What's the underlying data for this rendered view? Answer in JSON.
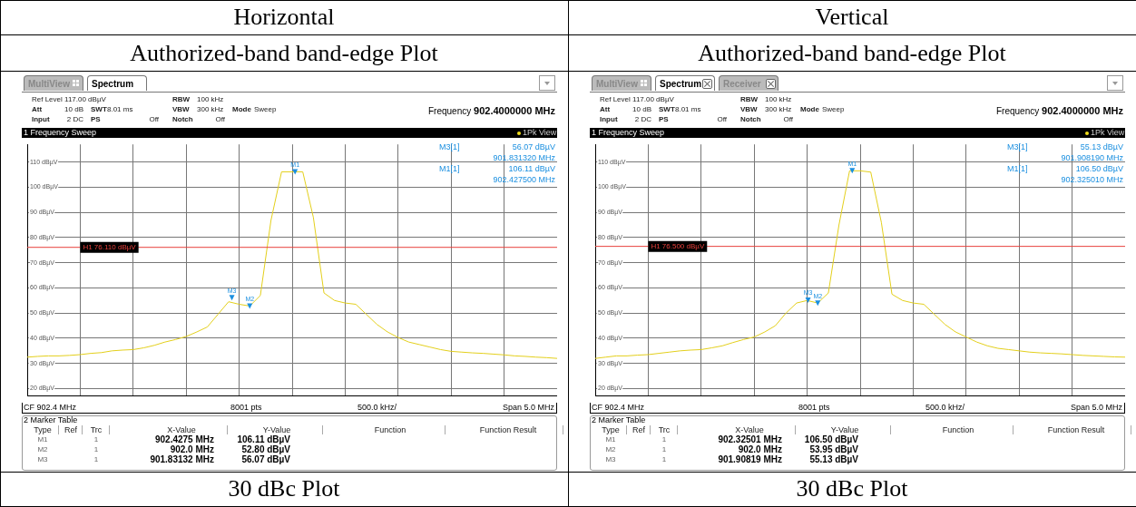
{
  "chart_data": [
    {
      "type": "line",
      "title": "Horizontal",
      "subtitle": "Authorized-band band-edge Plot",
      "categories": [
        null,
        null,
        null,
        null,
        null,
        null,
        null,
        null,
        null,
        null,
        null,
        null,
        null,
        null,
        null,
        null,
        null,
        null,
        null,
        null,
        null,
        null,
        null,
        null,
        null,
        null,
        null,
        null,
        null,
        null,
        null,
        null,
        null,
        null,
        null,
        null,
        null,
        null,
        null,
        null,
        null,
        null,
        null,
        null,
        null,
        null,
        null,
        null,
        null,
        null,
        null
      ],
      "ylim": [
        17,
        117
      ],
      "yticks": [
        {
          "value": 20,
          "label": "20 dBµV"
        },
        {
          "value": 30,
          "label": "30 dBµV"
        },
        {
          "value": 40,
          "label": "40 dBµV"
        },
        {
          "value": 50,
          "label": "50 dBµV"
        },
        {
          "value": 60,
          "label": "60 dBµV"
        },
        {
          "value": 70,
          "label": "70 dBµV"
        },
        {
          "value": 80,
          "label": "80 dBµV"
        },
        {
          "value": 90,
          "label": "90 dBµV"
        },
        {
          "value": 100,
          "label": "100 dBµV"
        },
        {
          "value": 110,
          "label": "110 dBµV"
        }
      ],
      "grid": true,
      "tick_labels": "y",
      "marker": "none",
      "line_style": "solid",
      "ref_lines": [
        {
          "axis": "y",
          "value": 76.11,
          "label": "H1 76.110 dBµV",
          "color": "#e8413c"
        }
      ],
      "series": [
        {
          "color": "#e3cf1b",
          "values": [
            32.5,
            32.8,
            33,
            33,
            33.2,
            33.5,
            34,
            34.3,
            35,
            35.3,
            35.5,
            36.2,
            37.2,
            38.5,
            39.5,
            40.7,
            42.5,
            44.5,
            49.5,
            54.5,
            53.5,
            52.8,
            57,
            86.8,
            106.1,
            106.1,
            106.1,
            88,
            58,
            55,
            54,
            53.5,
            49.5,
            45.5,
            42.5,
            40.3,
            38.5,
            37.5,
            36.5,
            35.5,
            34.8,
            34.5,
            34.2,
            34,
            33.7,
            33.4,
            33,
            32.8,
            32.5,
            32.3,
            32
          ]
        }
      ],
      "annotations": [
        "Ref Level 117.00 dBµV",
        "Att",
        "10 dB",
        "Input",
        "2 DC",
        "SWT",
        "8.01 ms",
        "PS",
        "Off",
        "RBW",
        "100 kHz",
        "VBW",
        "300 kHz",
        "Notch",
        "Off",
        "Mode",
        "Sweep",
        "Frequency",
        "902.4000000 MHz",
        "1 Frequency Sweep",
        "1Pk View",
        "M3[1]",
        "56.07 dBµV",
        "901.831320 MHz",
        "M1[1]",
        "106.11 dBµV",
        "902.427500 MHz",
        "CF 902.4 MHz",
        "8001 pts",
        "500.0 kHz/",
        "Span 5.0 MHz",
        "2 Marker Table",
        "Type",
        "Ref",
        "Trc",
        "X-Value",
        "Y-Value",
        "Function",
        "Function Result",
        "M1",
        "1",
        "902.4275 MHz",
        "106.11 dBµV",
        "M2",
        "1",
        "902.0 MHz",
        "52.80 dBµV",
        "M3",
        "1",
        "901.83132 MHz",
        "56.07 dBµV",
        "30 dBc Plot",
        {
          "text": "M1",
          "y": 106.11
        },
        {
          "text": "M2",
          "y": 52.8
        },
        {
          "text": "M3",
          "y": 56.07
        },
        "MultiView",
        "Spectrum"
      ]
    },
    {
      "type": "line",
      "title": "Vertical",
      "subtitle": "Authorized-band band-edge Plot",
      "categories": [
        null,
        null,
        null,
        null,
        null,
        null,
        null,
        null,
        null,
        null,
        null,
        null,
        null,
        null,
        null,
        null,
        null,
        null,
        null,
        null,
        null,
        null,
        null,
        null,
        null,
        null,
        null,
        null,
        null,
        null,
        null,
        null,
        null,
        null,
        null,
        null,
        null,
        null,
        null,
        null,
        null,
        null,
        null,
        null,
        null,
        null,
        null,
        null,
        null,
        null,
        null
      ],
      "ylim": [
        17,
        117
      ],
      "yticks": [
        {
          "value": 20,
          "label": "20 dBµV"
        },
        {
          "value": 30,
          "label": "30 dBµV"
        },
        {
          "value": 40,
          "label": "40 dBµV"
        },
        {
          "value": 50,
          "label": "50 dBµV"
        },
        {
          "value": 60,
          "label": "60 dBµV"
        },
        {
          "value": 70,
          "label": "70 dBµV"
        },
        {
          "value": 80,
          "label": "80 dBµV"
        },
        {
          "value": 90,
          "label": "90 dBµV"
        },
        {
          "value": 100,
          "label": "100 dBµV"
        },
        {
          "value": 110,
          "label": "110 dBµV"
        }
      ],
      "grid": true,
      "tick_labels": "y",
      "marker": "none",
      "line_style": "solid",
      "ref_lines": [
        {
          "axis": "y",
          "value": 76.5,
          "label": "H1 76.500 dBµV",
          "color": "#e8413c"
        }
      ],
      "series": [
        {
          "color": "#e3cf1b",
          "values": [
            32,
            32.5,
            33,
            33,
            33.3,
            33.5,
            34,
            34.5,
            35,
            35.3,
            35.5,
            36.2,
            37,
            38.3,
            39.5,
            40.5,
            42.5,
            45,
            50,
            54,
            55,
            54,
            58,
            85,
            106.5,
            106.5,
            106,
            86,
            57.5,
            55,
            54,
            53.5,
            49.5,
            45.5,
            42.5,
            40.5,
            38.5,
            37,
            36,
            35.5,
            35,
            34.5,
            34.2,
            34,
            33.8,
            33.5,
            33.2,
            33,
            32.8,
            32.6,
            32.5
          ]
        }
      ],
      "annotations": [
        "Ref Level 117.00 dBµV",
        "Att",
        "10 dB",
        "Input",
        "2 DC",
        "SWT",
        "8.01 ms",
        "PS",
        "Off",
        "RBW",
        "100 kHz",
        "VBW",
        "300 kHz",
        "Notch",
        "Off",
        "Mode",
        "Sweep",
        "Frequency",
        "902.4000000 MHz",
        "1 Frequency Sweep",
        "1Pk View",
        "M3[1]",
        "55.13 dBµV",
        "901.908190 MHz",
        "M1[1]",
        "106.50 dBµV",
        "902.325010 MHz",
        "CF 902.4 MHz",
        "8001 pts",
        "500.0 kHz/",
        "Span 5.0 MHz",
        "2 Marker Table",
        "Type",
        "Ref",
        "Trc",
        "X-Value",
        "Y-Value",
        "Function",
        "Function Result",
        "M1",
        "1",
        "902.32501 MHz",
        "106.50 dBµV",
        "M2",
        "1",
        "902.0 MHz",
        "53.95 dBµV",
        "M3",
        "1",
        "901.90819 MHz",
        "55.13 dBµV",
        "30 dBc Plot",
        {
          "text": "M1",
          "y": 106.5
        },
        {
          "text": "M2",
          "y": 53.95
        },
        {
          "text": "M3",
          "y": 55.13
        },
        "MultiView",
        "Spectrum",
        "Receiver"
      ]
    }
  ]
}
